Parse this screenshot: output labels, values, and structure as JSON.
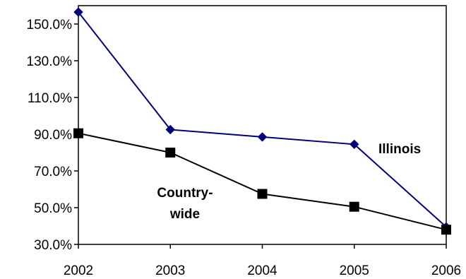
{
  "chart_data": {
    "type": "line",
    "title": "",
    "xlabel": "",
    "ylabel": "",
    "x": [
      "2002",
      "2003",
      "2004",
      "2005",
      "2006"
    ],
    "ylim": [
      30,
      160
    ],
    "yticks": [
      30,
      50,
      70,
      90,
      110,
      130,
      150
    ],
    "ytick_labels": [
      "30.0%",
      "50.0%",
      "70.0%",
      "90.0%",
      "110.0%",
      "130.0%",
      "150.0%"
    ],
    "grid": false,
    "legend": "none",
    "series": [
      {
        "name": "Illinois",
        "values": [
          156.5,
          92.5,
          88.5,
          84.5,
          39.5
        ],
        "color": "#00007f",
        "marker": "diamond"
      },
      {
        "name": "Country-wide",
        "values": [
          90.5,
          80.0,
          57.5,
          50.5,
          38.0
        ],
        "color": "#000000",
        "marker": "square"
      }
    ],
    "annotations": [
      {
        "series": "Illinois",
        "lines": [
          "Illinois"
        ]
      },
      {
        "series": "Country-wide",
        "lines": [
          "Country-",
          "wide"
        ]
      }
    ]
  }
}
